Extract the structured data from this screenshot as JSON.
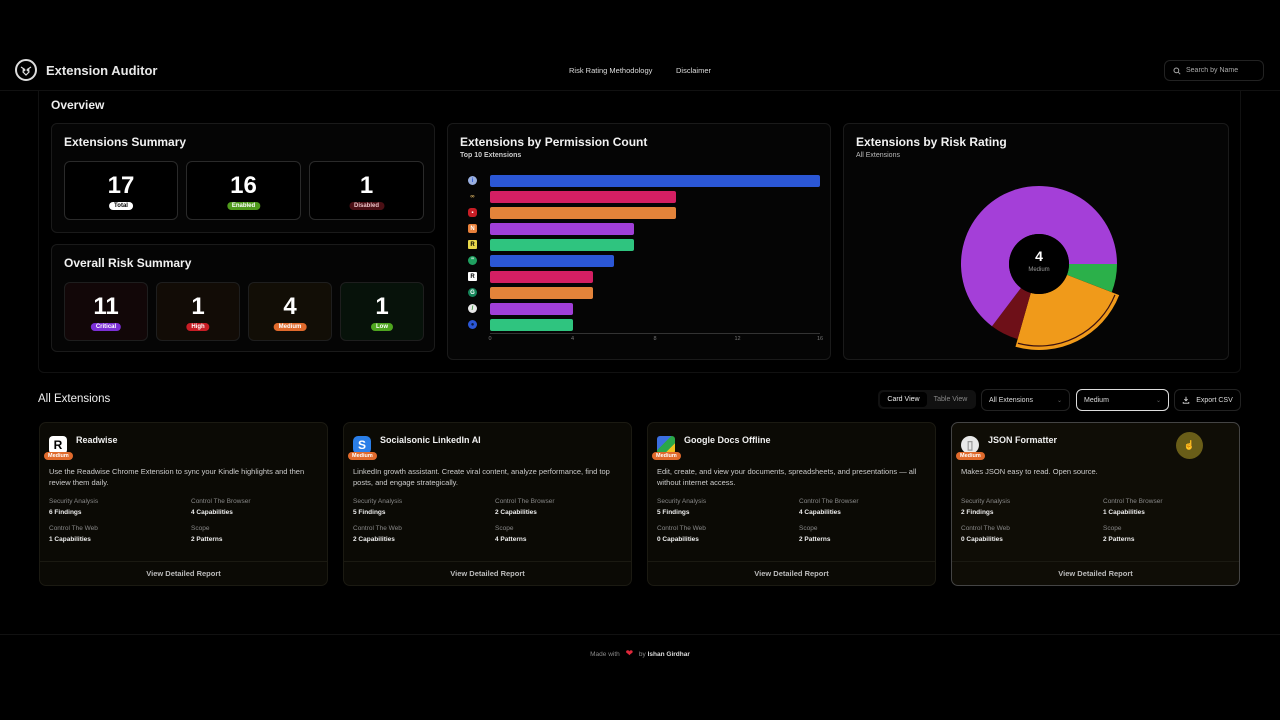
{
  "header": {
    "app_title": "Extension Auditor",
    "nav": [
      "Risk Rating Methodology",
      "Disclaimer"
    ],
    "search_placeholder": "Search by Name"
  },
  "overview": {
    "title": "Overview",
    "extensions_summary": {
      "title": "Extensions Summary",
      "stats": [
        {
          "value": "17",
          "label": "Total",
          "badge_bg": "#ffffff",
          "badge_fg": "#000000"
        },
        {
          "value": "16",
          "label": "Enabled",
          "badge_bg": "#4f9a1c",
          "badge_fg": "#ffffff"
        },
        {
          "value": "1",
          "label": "Disabled",
          "badge_bg": "#4a0f14",
          "badge_fg": "#e8c0c4"
        }
      ]
    },
    "risk_summary": {
      "title": "Overall Risk Summary",
      "stats": [
        {
          "value": "11",
          "label": "Critical",
          "badge_bg": "#7b2fd6",
          "box_bg": "#120708"
        },
        {
          "value": "1",
          "label": "High",
          "badge_bg": "#c81d25",
          "box_bg": "#120c06"
        },
        {
          "value": "4",
          "label": "Medium",
          "badge_bg": "#e06a2c",
          "box_bg": "#120e06"
        },
        {
          "value": "1",
          "label": "Low",
          "badge_bg": "#4ea51f",
          "box_bg": "#07120a"
        }
      ]
    }
  },
  "chart_data": [
    {
      "type": "bar",
      "title": "Extensions by Permission Count",
      "subtitle": "Top 10 Extensions",
      "orientation": "horizontal",
      "categories": [
        "ext-1 (blue info icon)",
        "ext-2 (infinity icon)",
        "ext-3 (red lock icon)",
        "ext-4 (orange icon)",
        "ext-5 (yellow R)",
        "ext-6 (green quote)",
        "Readwise",
        "ext-8 (green G)",
        "ext-9 (color swirl)",
        "ext-10 (blue circle)"
      ],
      "values": [
        16,
        9,
        9,
        7,
        7,
        6,
        5,
        5,
        4,
        4
      ],
      "colors": [
        "#2b57d6",
        "#d41f63",
        "#e3833a",
        "#a03fd8",
        "#2fc47f",
        "#2b57d6",
        "#d41f63",
        "#e3833a",
        "#a03fd8",
        "#2fc47f"
      ],
      "xlabel": "",
      "ylabel": "",
      "xticks": [
        0,
        4,
        8,
        12,
        16
      ],
      "xlim": [
        0,
        16
      ],
      "grid": false
    },
    {
      "type": "pie",
      "title": "Extensions by Risk Rating",
      "subtitle": "All Extensions",
      "donut": true,
      "categories": [
        "Critical",
        "Low",
        "Medium",
        "High"
      ],
      "values": [
        11,
        1,
        4,
        1
      ],
      "colors": [
        "#a43fd8",
        "#2bb04a",
        "#f09a1a",
        "#6e1018"
      ],
      "highlighted": "Medium",
      "center_value": "4",
      "center_label": "Medium"
    }
  ],
  "all_extensions": {
    "title": "All Extensions",
    "view_toggle": [
      "Card View",
      "Table View"
    ],
    "filter_select": "All Extensions",
    "risk_select": "Medium",
    "export_label": "Export CSV",
    "metric_labels": [
      "Security Analysis",
      "Control The Browser",
      "Control The Web",
      "Scope"
    ],
    "footer_label": "View Detailed Report",
    "cards": [
      {
        "name": "Readwise",
        "risk": "Medium",
        "description": "Use the Readwise Chrome Extension to sync your Kindle highlights and then review them daily.",
        "security": "6 Findings",
        "browser": "4 Capabilities",
        "web": "1 Capabilities",
        "scope": "2 Patterns"
      },
      {
        "name": "Socialsonic LinkedIn AI",
        "risk": "Medium",
        "description": "LinkedIn growth assistant. Create viral content, analyze performance, find top posts, and engage strategically.",
        "security": "5 Findings",
        "browser": "2 Capabilities",
        "web": "2 Capabilities",
        "scope": "4 Patterns"
      },
      {
        "name": "Google Docs Offline",
        "risk": "Medium",
        "description": "Edit, create, and view your documents, spreadsheets, and presentations — all without internet access.",
        "security": "5 Findings",
        "browser": "4 Capabilities",
        "web": "0 Capabilities",
        "scope": "2 Patterns"
      },
      {
        "name": "JSON Formatter",
        "risk": "Medium",
        "description": "Makes JSON easy to read. Open source.",
        "security": "2 Findings",
        "browser": "1 Capabilities",
        "web": "0 Capabilities",
        "scope": "2 Patterns"
      }
    ]
  },
  "footer": {
    "made_with": "Made with",
    "by": "by",
    "author": "Ishan Girdhar",
    "heart": "❤"
  }
}
